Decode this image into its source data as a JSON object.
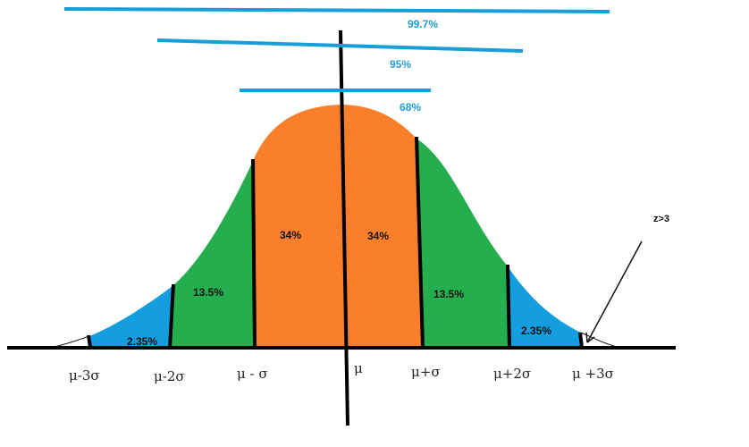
{
  "colors": {
    "background": "#ffffff",
    "center": "#fb7f2b",
    "middle": "#24ae4d",
    "outer": "#149ee0",
    "band_line": "#189ed9",
    "band_label": "#1d9fd6",
    "axis": "#000000"
  },
  "bands": [
    {
      "label": "99.7%"
    },
    {
      "label": "95%"
    },
    {
      "label": "68%"
    }
  ],
  "regions": [
    {
      "label": "2.35%",
      "color": "outer"
    },
    {
      "label": "13.5%",
      "color": "middle"
    },
    {
      "label": "34%",
      "color": "center"
    },
    {
      "label": "34%",
      "color": "center"
    },
    {
      "label": "13.5%",
      "color": "middle"
    },
    {
      "label": "2.35%",
      "color": "outer"
    }
  ],
  "ticks": [
    {
      "label": "μ-3σ"
    },
    {
      "label": "μ-2σ"
    },
    {
      "label": "μ - σ"
    },
    {
      "label": "μ"
    },
    {
      "label": "μ+σ"
    },
    {
      "label": "μ+2σ"
    },
    {
      "label": "μ +3σ"
    }
  ],
  "annotation": {
    "label": "z>3"
  }
}
